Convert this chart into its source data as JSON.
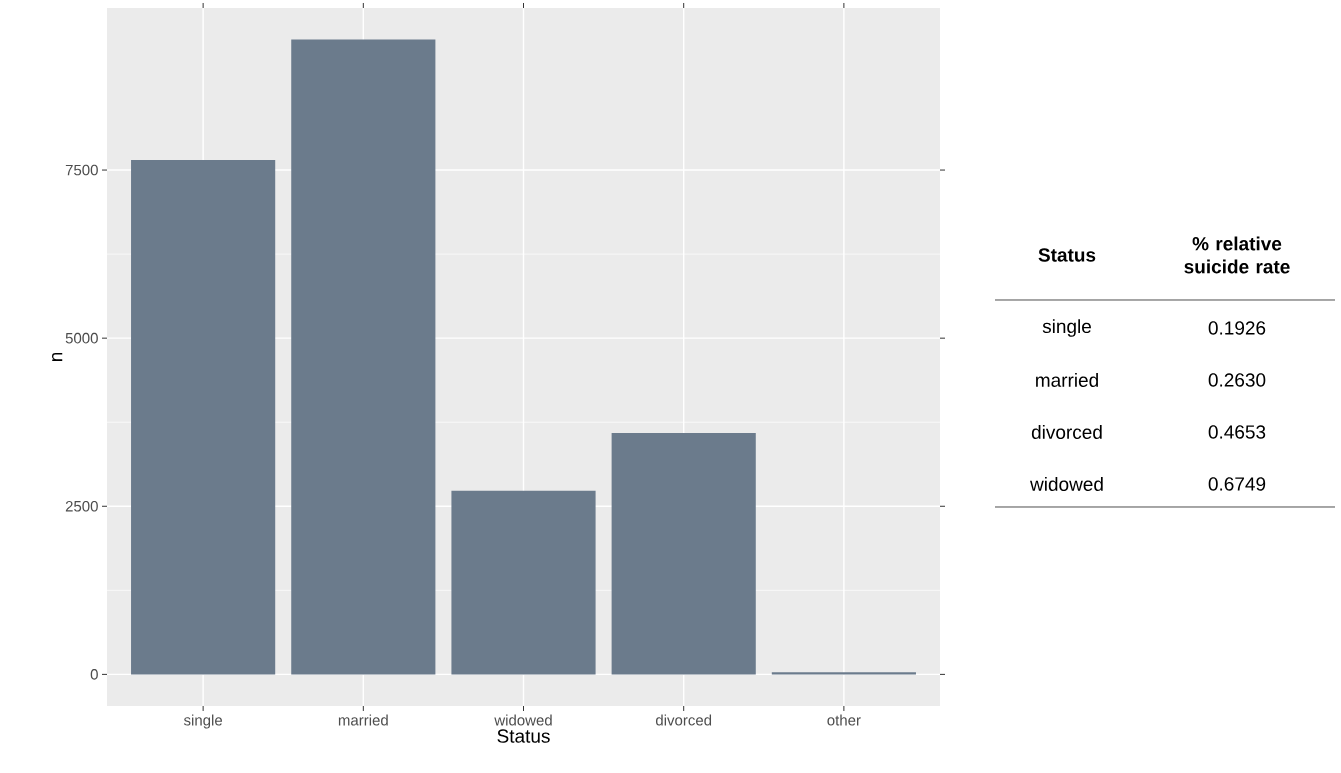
{
  "chart_data": [
    {
      "type": "bar",
      "categories": [
        "single",
        "married",
        "widowed",
        "divorced",
        "other"
      ],
      "values": [
        7650,
        9440,
        2730,
        3590,
        30
      ],
      "color": "#6b7b8c",
      "ylim": [
        -470,
        9910
      ],
      "yticks": [
        0,
        2500,
        5000,
        7500
      ],
      "grid": true,
      "xlabel": "Status",
      "ylabel": "n"
    },
    {
      "type": "other",
      "annotations": [
        "Status",
        "% relative suicide rate",
        "single",
        "0.1926",
        "married",
        "0.2630",
        "divorced",
        "0.4653",
        "widowed",
        "0.6749"
      ]
    }
  ]
}
